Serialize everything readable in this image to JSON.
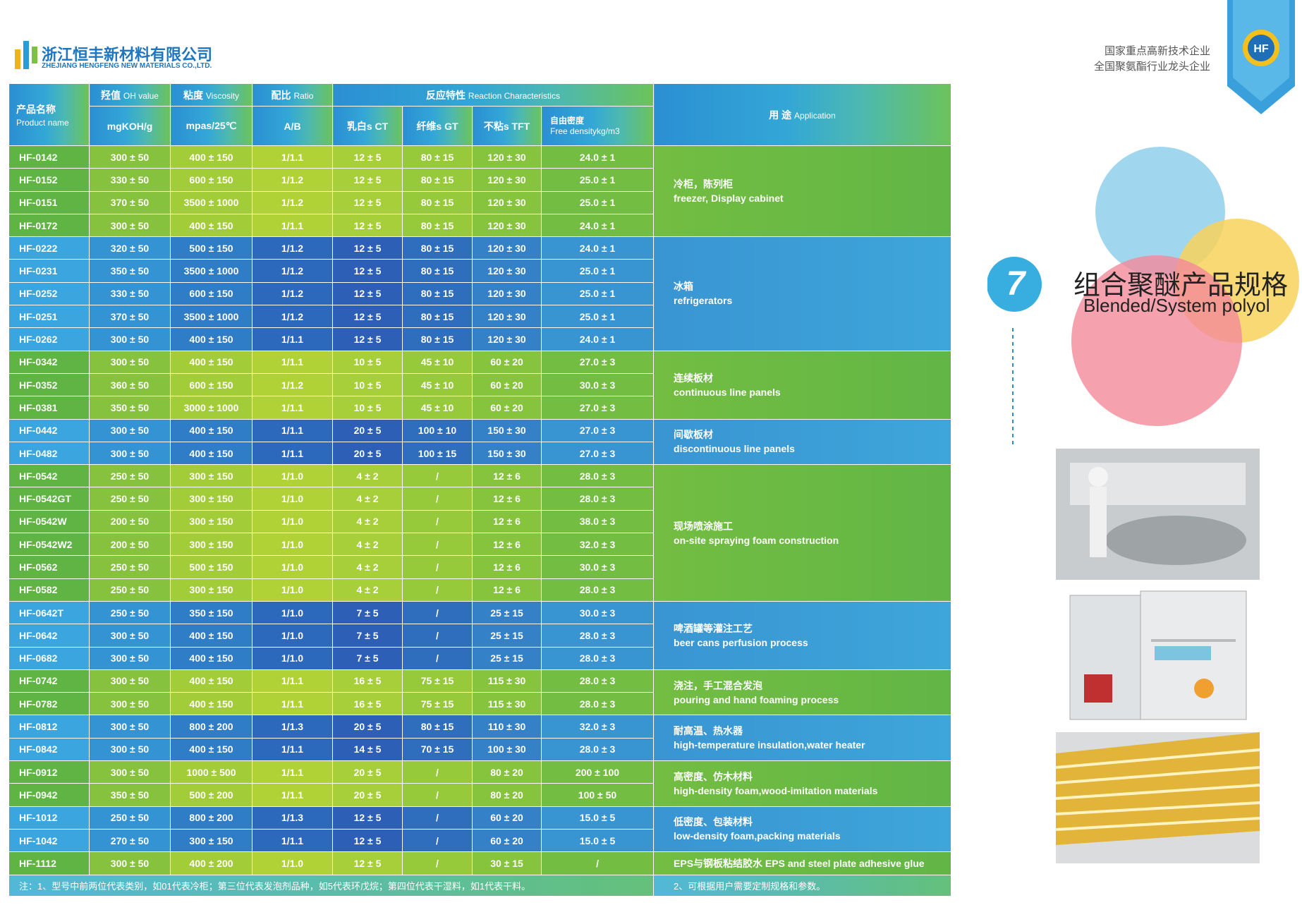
{
  "header": {
    "logo_cn": "浙江恒丰新材料有限公司",
    "logo_en": "ZHEJIANG HENGFENG NEW MATERIALS CO.,LTD.",
    "slogans": [
      "国家重点高新技术企业",
      "全国聚氨酯行业龙头企业"
    ]
  },
  "section": {
    "number": "7",
    "title_cn": "组合聚醚产品规格",
    "title_en": "Blended/System polyol"
  },
  "table": {
    "header": {
      "product": [
        "产品名称",
        "Product name"
      ],
      "oh": [
        "羟值",
        "OH value",
        "mgKOH/g"
      ],
      "viscosity": [
        "粘度",
        "Viscosity",
        "mpas/25℃"
      ],
      "ratio": [
        "配比",
        "Ratio",
        "A/B"
      ],
      "reaction": [
        "反应特性",
        "Reaction Characteristics"
      ],
      "ct": "乳白s CT",
      "gt": "纤维s GT",
      "tft": "不粘s TFT",
      "density": [
        "自由密度",
        "Free densitykg/m3"
      ],
      "application": [
        "用 途",
        "Application"
      ]
    },
    "groups": [
      {
        "application": [
          "冷柜，陈列柜",
          "freezer, Display cabinet"
        ],
        "rows": [
          [
            "HF-0142",
            "300 ± 50",
            "400 ± 150",
            "1/1.1",
            "12 ± 5",
            "80 ± 15",
            "120 ± 30",
            "24.0 ± 1"
          ],
          [
            "HF-0152",
            "330 ± 50",
            "600 ± 150",
            "1/1.2",
            "12 ± 5",
            "80 ± 15",
            "120 ± 30",
            "25.0 ± 1"
          ],
          [
            "HF-0151",
            "370 ± 50",
            "3500 ± 1000",
            "1/1.2",
            "12 ± 5",
            "80 ± 15",
            "120 ± 30",
            "25.0 ± 1"
          ],
          [
            "HF-0172",
            "300 ± 50",
            "400 ± 150",
            "1/1.1",
            "12 ± 5",
            "80 ± 15",
            "120 ± 30",
            "24.0 ± 1"
          ]
        ]
      },
      {
        "application": [
          "冰箱",
          "refrigerators"
        ],
        "rows": [
          [
            "HF-0222",
            "320 ± 50",
            "500 ± 150",
            "1/1.2",
            "12 ± 5",
            "80 ± 15",
            "120 ± 30",
            "24.0 ± 1"
          ],
          [
            "HF-0231",
            "350 ± 50",
            "3500 ± 1000",
            "1/1.2",
            "12 ± 5",
            "80 ± 15",
            "120 ± 30",
            "25.0 ± 1"
          ],
          [
            "HF-0252",
            "330 ± 50",
            "600 ± 150",
            "1/1.2",
            "12 ± 5",
            "80 ± 15",
            "120 ± 30",
            "25.0 ± 1"
          ],
          [
            "HF-0251",
            "370 ± 50",
            "3500 ± 1000",
            "1/1.2",
            "12 ± 5",
            "80 ± 15",
            "120 ± 30",
            "25.0 ± 1"
          ],
          [
            "HF-0262",
            "300 ± 50",
            "400 ± 150",
            "1/1.1",
            "12 ± 5",
            "80 ± 15",
            "120 ± 30",
            "24.0 ± 1"
          ]
        ]
      },
      {
        "application": [
          "连续板材",
          "continuous line panels"
        ],
        "rows": [
          [
            "HF-0342",
            "300 ± 50",
            "400 ± 150",
            "1/1.1",
            "10 ± 5",
            "45 ± 10",
            "60 ± 20",
            "27.0 ± 3"
          ],
          [
            "HF-0352",
            "360 ± 50",
            "600 ± 150",
            "1/1.2",
            "10 ± 5",
            "45 ± 10",
            "60 ± 20",
            "30.0 ± 3"
          ],
          [
            "HF-0381",
            "350 ± 50",
            "3000 ± 1000",
            "1/1.1",
            "10 ± 5",
            "45 ± 10",
            "60 ± 20",
            "27.0 ± 3"
          ]
        ]
      },
      {
        "application": [
          "间歇板材",
          "discontinuous line panels"
        ],
        "rows": [
          [
            "HF-0442",
            "300 ± 50",
            "400 ± 150",
            "1/1.1",
            "20 ± 5",
            "100 ± 10",
            "150 ± 30",
            "27.0 ± 3"
          ],
          [
            "HF-0482",
            "300 ± 50",
            "400 ± 150",
            "1/1.1",
            "20 ± 5",
            "100 ± 15",
            "150 ± 30",
            "27.0 ± 3"
          ]
        ]
      },
      {
        "application": [
          "现场喷涂施工",
          "on-site spraying foam construction"
        ],
        "rows": [
          [
            "HF-0542",
            "250 ± 50",
            "300 ± 150",
            "1/1.0",
            "4 ± 2",
            "/",
            "12 ± 6",
            "28.0 ± 3"
          ],
          [
            "HF-0542GT",
            "250 ± 50",
            "300 ± 150",
            "1/1.0",
            "4 ± 2",
            "/",
            "12 ± 6",
            "28.0 ± 3"
          ],
          [
            "HF-0542W",
            "200 ± 50",
            "300 ± 150",
            "1/1.0",
            "4 ± 2",
            "/",
            "12 ± 6",
            "38.0 ± 3"
          ],
          [
            "HF-0542W2",
            "200 ± 50",
            "300 ± 150",
            "1/1.0",
            "4 ± 2",
            "/",
            "12 ± 6",
            "32.0 ± 3"
          ],
          [
            "HF-0562",
            "250 ± 50",
            "500 ± 150",
            "1/1.0",
            "4 ± 2",
            "/",
            "12 ± 6",
            "30.0 ± 3"
          ],
          [
            "HF-0582",
            "250 ± 50",
            "300 ± 150",
            "1/1.0",
            "4 ± 2",
            "/",
            "12 ± 6",
            "28.0 ± 3"
          ]
        ]
      },
      {
        "application": [
          "啤酒罐等灌注工艺",
          "beer cans perfusion process"
        ],
        "rows": [
          [
            "HF-0642T",
            "250 ± 50",
            "350 ± 150",
            "1/1.0",
            "7 ± 5",
            "/",
            "25 ± 15",
            "30.0 ± 3"
          ],
          [
            "HF-0642",
            "300 ± 50",
            "400 ± 150",
            "1/1.0",
            "7 ± 5",
            "/",
            "25 ± 15",
            "28.0 ± 3"
          ],
          [
            "HF-0682",
            "300 ± 50",
            "400 ± 150",
            "1/1.0",
            "7 ± 5",
            "/",
            "25 ± 15",
            "28.0 ± 3"
          ]
        ]
      },
      {
        "application": [
          "浇注，手工混合发泡",
          "pouring and hand foaming process"
        ],
        "rows": [
          [
            "HF-0742",
            "300 ± 50",
            "400 ± 150",
            "1/1.1",
            "16 ± 5",
            "75 ± 15",
            "115 ± 30",
            "28.0 ± 3"
          ],
          [
            "HF-0782",
            "300 ± 50",
            "400 ± 150",
            "1/1.1",
            "16 ± 5",
            "75 ± 15",
            "115 ± 30",
            "28.0 ± 3"
          ]
        ]
      },
      {
        "application": [
          "耐高温、热水器",
          "high-temperature insulation,water heater"
        ],
        "rows": [
          [
            "HF-0812",
            "300 ± 50",
            "800 ± 200",
            "1/1.3",
            "20 ± 5",
            "80 ± 15",
            "110 ± 30",
            "32.0 ± 3"
          ],
          [
            "HF-0842",
            "300 ± 50",
            "400 ± 150",
            "1/1.1",
            "14 ± 5",
            "70 ± 15",
            "100 ± 30",
            "28.0 ± 3"
          ]
        ]
      },
      {
        "application": [
          "高密度、仿木材料",
          "high-density foam,wood-imitation materials"
        ],
        "rows": [
          [
            "HF-0912",
            "300 ± 50",
            "1000 ± 500",
            "1/1.1",
            "20 ± 5",
            "/",
            "80 ± 20",
            "200 ± 100"
          ],
          [
            "HF-0942",
            "350 ± 50",
            "500 ± 200",
            "1/1.1",
            "20 ± 5",
            "/",
            "80 ± 20",
            "100 ± 50"
          ]
        ]
      },
      {
        "application": [
          "低密度、包装材料",
          "low-density foam,packing materials"
        ],
        "rows": [
          [
            "HF-1012",
            "250 ± 50",
            "800 ± 200",
            "1/1.3",
            "12 ± 5",
            "/",
            "60 ± 20",
            "15.0 ± 5"
          ],
          [
            "HF-1042",
            "270 ± 50",
            "300 ± 150",
            "1/1.1",
            "12 ± 5",
            "/",
            "60 ± 20",
            "15.0 ± 5"
          ]
        ]
      },
      {
        "application": [
          "EPS与钢板粘结胶水 EPS and steel plate adhesive glue"
        ],
        "rows": [
          [
            "HF-1112",
            "300 ± 50",
            "400 ± 200",
            "1/1.0",
            "12 ± 5",
            "/",
            "30 ± 15",
            "/"
          ]
        ]
      }
    ],
    "notes": [
      "注：1、型号中前两位代表类别，如01代表冷柜；第三位代表发泡剂品种，如5代表环戊烷；第四位代表干湿料，如1代表干料。",
      "2、可根据用户需要定制规格和参数。"
    ]
  }
}
